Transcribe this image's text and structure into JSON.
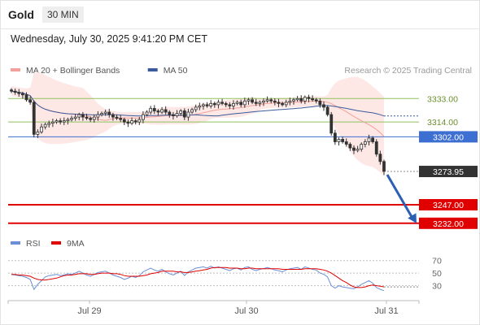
{
  "header": {
    "symbol": "Gold",
    "timeframe": "30 MIN",
    "datetime": "Wednesday, July 30, 2025 9:41:20 PM CET"
  },
  "legend": [
    {
      "label": "MA 20 + Bollinger Bands",
      "color": "#f4a09a"
    },
    {
      "label": "MA 50",
      "color": "#3b5a9b"
    }
  ],
  "credit": "Research © 2025 Trading Central",
  "rsi_legend": [
    {
      "label": "RSI",
      "color": "#6a8fd8"
    },
    {
      "label": "9MA",
      "color": "#e00000"
    }
  ],
  "colors": {
    "resistance": "#8fc15e",
    "pivot": "#3c6fd1",
    "support": "#e00000",
    "current_price": "#333333",
    "candle_up": "#ffffff",
    "candle_down": "#333333",
    "projection_arrow": "#2b5fb4",
    "bollinger_fill": "#fde2e0"
  },
  "chart_data": [
    {
      "type": "candlestick",
      "title": "Gold 30 MIN",
      "x_tick_labels": [
        "Jul 29",
        "Jul 30",
        "Jul 31"
      ],
      "ylim": [
        3222,
        3347
      ],
      "close_series": [
        3339,
        3338,
        3337,
        3336,
        3332,
        3330,
        3304,
        3306,
        3310,
        3312,
        3313,
        3314,
        3315,
        3314,
        3315,
        3316,
        3317,
        3318,
        3320,
        3318,
        3317,
        3316,
        3318,
        3320,
        3321,
        3322,
        3320,
        3318,
        3317,
        3316,
        3314,
        3313,
        3315,
        3314,
        3316,
        3320,
        3322,
        3325,
        3323,
        3322,
        3324,
        3322,
        3320,
        3319,
        3321,
        3323,
        3318,
        3322,
        3324,
        3326,
        3327,
        3328,
        3327,
        3329,
        3328,
        3330,
        3329,
        3328,
        3327,
        3329,
        3330,
        3328,
        3331,
        3332,
        3330,
        3329,
        3330,
        3331,
        3332,
        3331,
        3330,
        3329,
        3328,
        3330,
        3331,
        3332,
        3333,
        3331,
        3334,
        3333,
        3332,
        3331,
        3328,
        3326,
        3320,
        3305,
        3298,
        3300,
        3298,
        3296,
        3293,
        3291,
        3292,
        3296,
        3298,
        3301,
        3298,
        3288,
        3282,
        3274
      ],
      "current_price": 3273.95,
      "price_labels": [
        {
          "label": "3333.00",
          "value": 3333.0,
          "role": "resistance"
        },
        {
          "label": "3314.00",
          "value": 3314.0,
          "role": "resistance"
        },
        {
          "label": "3302.00",
          "value": 3302.0,
          "role": "pivot"
        },
        {
          "label": "3273.95",
          "value": 3273.95,
          "role": "current"
        },
        {
          "label": "3247.00",
          "value": 3247.0,
          "role": "support"
        },
        {
          "label": "3232.00",
          "value": 3232.0,
          "role": "support"
        }
      ],
      "projection": {
        "from": 3273.95,
        "to": 3232.0
      }
    },
    {
      "type": "line",
      "title": "RSI",
      "series_names": [
        "RSI",
        "9MA"
      ],
      "y_tick_labels": [
        "70",
        "50",
        "30"
      ],
      "ylim": [
        10,
        80
      ],
      "rsi_series": [
        48,
        47,
        46,
        45,
        43,
        40,
        24,
        32,
        38,
        44,
        46,
        47,
        48,
        46,
        47,
        49,
        48,
        50,
        53,
        50,
        47,
        45,
        48,
        51,
        52,
        53,
        50,
        47,
        45,
        43,
        40,
        42,
        45,
        43,
        46,
        52,
        55,
        58,
        55,
        53,
        56,
        52,
        49,
        47,
        50,
        53,
        46,
        52,
        55,
        58,
        59,
        60,
        58,
        61,
        58,
        60,
        58,
        56,
        54,
        57,
        58,
        55,
        59,
        60,
        56,
        54,
        56,
        57,
        59,
        57,
        55,
        54,
        52,
        55,
        57,
        58,
        59,
        56,
        60,
        58,
        56,
        55,
        50,
        48,
        44,
        30,
        26,
        30,
        28,
        27,
        26,
        25,
        28,
        32,
        35,
        38,
        34,
        27,
        24,
        22
      ],
      "ma9_series": [
        48,
        48,
        47,
        47,
        46,
        45,
        42,
        40,
        39,
        39,
        40,
        41,
        42,
        44,
        46,
        47,
        47,
        48,
        49,
        49,
        49,
        48,
        48,
        49,
        50,
        50,
        50,
        49,
        49,
        48,
        46,
        45,
        45,
        45,
        45,
        46,
        47,
        49,
        50,
        51,
        53,
        53,
        53,
        53,
        52,
        52,
        51,
        51,
        52,
        53,
        54,
        55,
        56,
        58,
        59,
        59,
        59,
        59,
        58,
        58,
        58,
        57,
        57,
        58,
        58,
        57,
        57,
        57,
        57,
        57,
        57,
        57,
        56,
        56,
        56,
        56,
        56,
        56,
        57,
        57,
        57,
        57,
        56,
        55,
        53,
        50,
        46,
        42,
        38,
        35,
        31,
        28,
        27,
        27,
        28,
        30,
        31,
        30,
        29,
        28
      ]
    }
  ]
}
